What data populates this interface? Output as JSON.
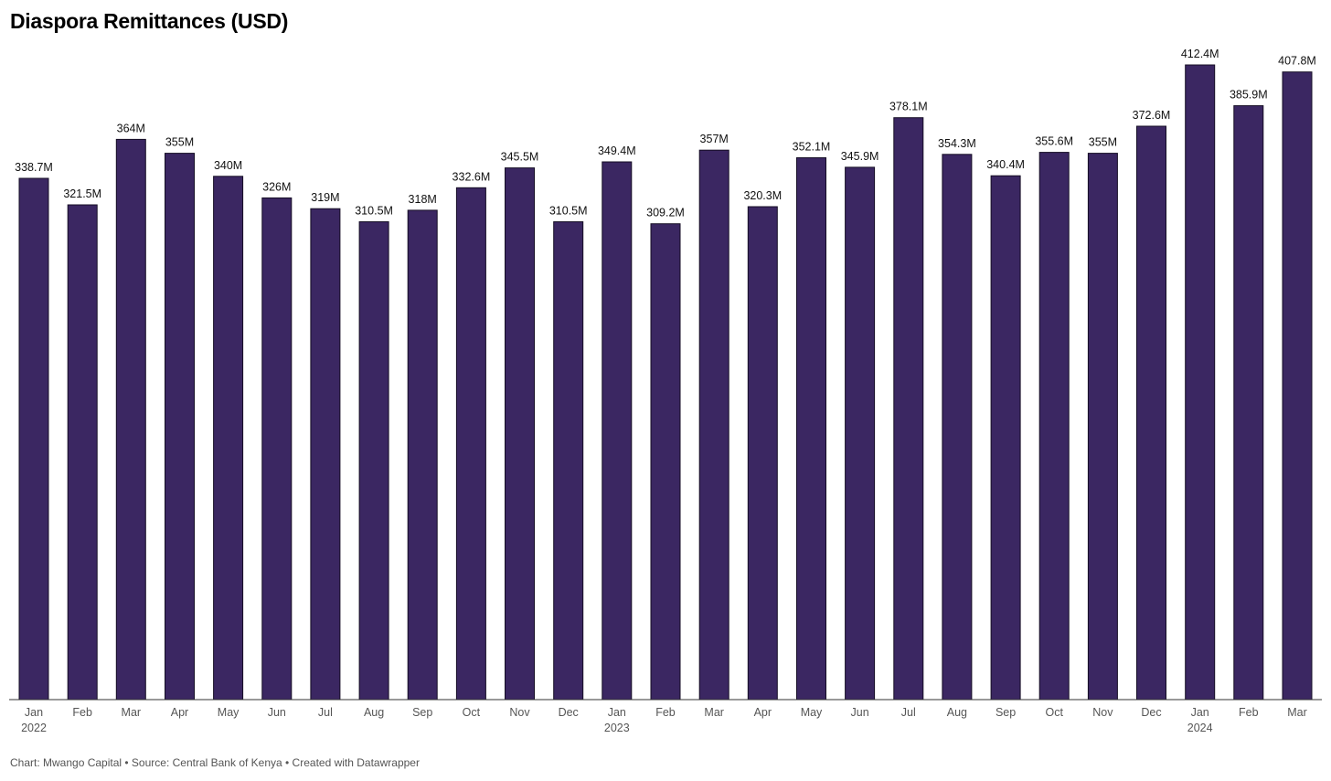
{
  "title": "Diaspora Remittances (USD)",
  "footer": "Chart: Mwango Capital • Source: Central Bank of Kenya • Created with Datawrapper",
  "colors": {
    "bar": "#3b2762"
  },
  "chart_data": {
    "type": "bar",
    "title": "Diaspora Remittances (USD)",
    "xlabel": "",
    "ylabel": "",
    "ylim": [
      0,
      412.4
    ],
    "categories": [
      "Jan",
      "Feb",
      "Mar",
      "Apr",
      "May",
      "Jun",
      "Jul",
      "Aug",
      "Sep",
      "Oct",
      "Nov",
      "Dec",
      "Jan",
      "Feb",
      "Mar",
      "Apr",
      "May",
      "Jun",
      "Jul",
      "Aug",
      "Sep",
      "Oct",
      "Nov",
      "Dec",
      "Jan",
      "Feb",
      "Mar"
    ],
    "year_labels": [
      {
        "index": 0,
        "label": "2022"
      },
      {
        "index": 12,
        "label": "2023"
      },
      {
        "index": 24,
        "label": "2024"
      }
    ],
    "values": [
      338.7,
      321.5,
      364,
      355,
      340,
      326,
      319,
      310.5,
      318,
      332.6,
      345.5,
      310.5,
      349.4,
      309.2,
      357,
      320.3,
      352.1,
      345.9,
      378.1,
      354.3,
      340.4,
      355.6,
      355,
      372.6,
      412.4,
      385.9,
      407.8
    ],
    "data_labels": [
      "338.7M",
      "321.5M",
      "364M",
      "355M",
      "340M",
      "326M",
      "319M",
      "310.5M",
      "318M",
      "332.6M",
      "345.5M",
      "310.5M",
      "349.4M",
      "309.2M",
      "357M",
      "320.3M",
      "352.1M",
      "345.9M",
      "378.1M",
      "354.3M",
      "340.4M",
      "355.6M",
      "355M",
      "372.6M",
      "412.4M",
      "385.9M",
      "407.8M"
    ],
    "grid": false,
    "legend": "none"
  }
}
